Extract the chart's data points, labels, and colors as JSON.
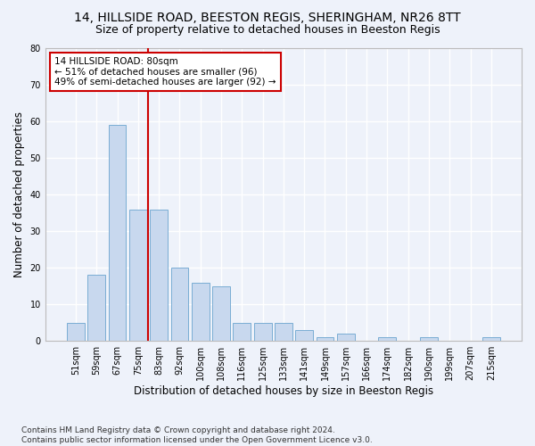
{
  "title1": "14, HILLSIDE ROAD, BEESTON REGIS, SHERINGHAM, NR26 8TT",
  "title2": "Size of property relative to detached houses in Beeston Regis",
  "xlabel": "Distribution of detached houses by size in Beeston Regis",
  "ylabel": "Number of detached properties",
  "categories": [
    "51sqm",
    "59sqm",
    "67sqm",
    "75sqm",
    "83sqm",
    "92sqm",
    "100sqm",
    "108sqm",
    "116sqm",
    "125sqm",
    "133sqm",
    "141sqm",
    "149sqm",
    "157sqm",
    "166sqm",
    "174sqm",
    "182sqm",
    "190sqm",
    "199sqm",
    "207sqm",
    "215sqm"
  ],
  "values": [
    5,
    18,
    59,
    36,
    36,
    20,
    16,
    15,
    5,
    5,
    5,
    3,
    1,
    2,
    0,
    1,
    0,
    1,
    0,
    0,
    1
  ],
  "bar_color": "#c8d8ee",
  "bar_edge_color": "#7aadd4",
  "vline_color": "#cc0000",
  "annotation_text": "14 HILLSIDE ROAD: 80sqm\n← 51% of detached houses are smaller (96)\n49% of semi-detached houses are larger (92) →",
  "annotation_box_color": "#cc0000",
  "ylim": [
    0,
    80
  ],
  "yticks": [
    0,
    10,
    20,
    30,
    40,
    50,
    60,
    70,
    80
  ],
  "footer": "Contains HM Land Registry data © Crown copyright and database right 2024.\nContains public sector information licensed under the Open Government Licence v3.0.",
  "background_color": "#eef2fa",
  "grid_color": "#ffffff",
  "title1_fontsize": 10,
  "title2_fontsize": 9,
  "xlabel_fontsize": 8.5,
  "ylabel_fontsize": 8.5,
  "footer_fontsize": 6.5,
  "tick_fontsize": 7,
  "annot_fontsize": 7.5
}
